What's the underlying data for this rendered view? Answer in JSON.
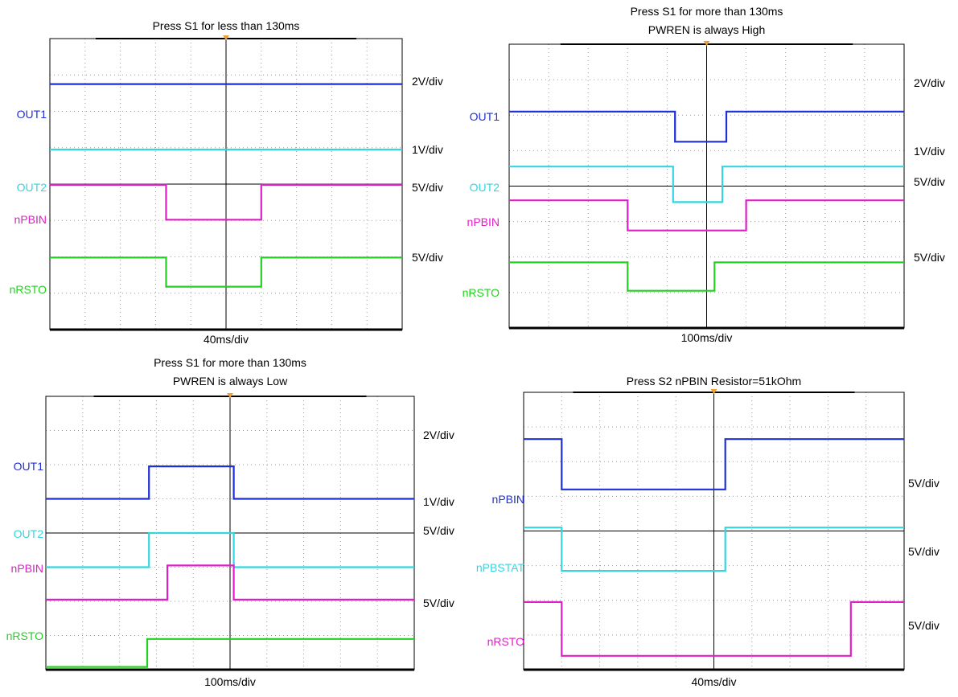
{
  "colors": {
    "blue": "#1f2fd6",
    "cyan": "#33d6e0",
    "magenta": "#e01ec8",
    "green": "#22d11f",
    "trigger": "#f0a030"
  },
  "chart_data": [
    {
      "type": "line",
      "chart": "oscilloscope",
      "title": [
        "Press S1 for less than 130ms"
      ],
      "timebase": "40ms/div",
      "x_range": [
        0,
        10
      ],
      "y_range": [
        0,
        8
      ],
      "traces": [
        {
          "name": "OUT1",
          "color": "blue",
          "scale": "2V/div",
          "points": [
            [
              0,
              6.75
            ],
            [
              10,
              6.75
            ]
          ]
        },
        {
          "name": "OUT2",
          "color": "cyan",
          "scale": "1V/div",
          "points": [
            [
              0,
              4.95
            ],
            [
              10,
              4.95
            ]
          ]
        },
        {
          "name": "nPBIN",
          "color": "magenta",
          "scale": "5V/div",
          "points": [
            [
              0,
              3.98
            ],
            [
              3.3,
              3.98
            ],
            [
              3.3,
              3.02
            ],
            [
              6.0,
              3.02
            ],
            [
              6.0,
              3.98
            ],
            [
              10,
              3.98
            ]
          ]
        },
        {
          "name": "nRSTO",
          "color": "green",
          "scale": "5V/div",
          "points": [
            [
              0,
              1.98
            ],
            [
              3.3,
              1.98
            ],
            [
              3.3,
              1.18
            ],
            [
              6.0,
              1.18
            ],
            [
              6.0,
              1.98
            ],
            [
              10,
              1.98
            ]
          ]
        }
      ]
    },
    {
      "type": "line",
      "chart": "oscilloscope",
      "title": [
        "Press S1 for more than 130ms",
        "PWREN is always High"
      ],
      "timebase": "100ms/div",
      "x_range": [
        0,
        10
      ],
      "y_range": [
        0,
        8
      ],
      "traces": [
        {
          "name": "OUT1",
          "color": "blue",
          "scale": "2V/div",
          "points": [
            [
              0,
              6.1
            ],
            [
              4.2,
              6.1
            ],
            [
              4.2,
              5.25
            ],
            [
              5.5,
              5.25
            ],
            [
              5.5,
              6.1
            ],
            [
              10,
              6.1
            ]
          ]
        },
        {
          "name": "OUT2",
          "color": "cyan",
          "scale": "1V/div",
          "points": [
            [
              0,
              4.55
            ],
            [
              4.15,
              4.55
            ],
            [
              4.15,
              3.55
            ],
            [
              5.4,
              3.55
            ],
            [
              5.4,
              4.55
            ],
            [
              10,
              4.55
            ]
          ]
        },
        {
          "name": "nPBIN",
          "color": "magenta",
          "scale": "5V/div",
          "points": [
            [
              0,
              3.6
            ],
            [
              3.0,
              3.6
            ],
            [
              3.0,
              2.75
            ],
            [
              6.0,
              2.75
            ],
            [
              6.0,
              3.6
            ],
            [
              10,
              3.6
            ]
          ]
        },
        {
          "name": "nRSTO",
          "color": "green",
          "scale": "5V/div",
          "points": [
            [
              0,
              1.85
            ],
            [
              3.0,
              1.85
            ],
            [
              3.0,
              1.05
            ],
            [
              5.2,
              1.05
            ],
            [
              5.2,
              1.85
            ],
            [
              10,
              1.85
            ]
          ]
        }
      ]
    },
    {
      "type": "line",
      "chart": "oscilloscope",
      "title": [
        "Press S1 for more than 130ms",
        "PWREN is always Low"
      ],
      "timebase": "100ms/div",
      "x_range": [
        0,
        10
      ],
      "y_range": [
        0,
        8
      ],
      "traces": [
        {
          "name": "OUT1",
          "color": "blue",
          "scale": "2V/div",
          "points": [
            [
              0,
              5.0
            ],
            [
              2.8,
              5.0
            ],
            [
              2.8,
              5.95
            ],
            [
              5.1,
              5.95
            ],
            [
              5.1,
              5.0
            ],
            [
              10,
              5.0
            ]
          ]
        },
        {
          "name": "OUT2",
          "color": "cyan",
          "scale": "1V/div",
          "points": [
            [
              0,
              3.0
            ],
            [
              2.8,
              3.0
            ],
            [
              2.8,
              4.0
            ],
            [
              5.1,
              4.0
            ],
            [
              5.1,
              3.0
            ],
            [
              10,
              3.0
            ]
          ]
        },
        {
          "name": "nPBIN",
          "color": "magenta",
          "scale": "5V/div",
          "points": [
            [
              0,
              2.05
            ],
            [
              3.3,
              2.05
            ],
            [
              3.3,
              3.05
            ],
            [
              5.1,
              3.05
            ],
            [
              5.1,
              2.05
            ],
            [
              10,
              2.05
            ]
          ]
        },
        {
          "name": "nRSTO",
          "color": "green",
          "scale": "5V/div",
          "points": [
            [
              0,
              0.08
            ],
            [
              2.75,
              0.08
            ],
            [
              2.75,
              0.9
            ],
            [
              10,
              0.9
            ]
          ]
        }
      ]
    },
    {
      "type": "line",
      "chart": "oscilloscope",
      "title": [
        "Press S2 nPBIN Resistor=51kOhm"
      ],
      "timebase": "40ms/div",
      "x_range": [
        0,
        10
      ],
      "y_range": [
        0,
        8
      ],
      "traces": [
        {
          "name": "nPBIN",
          "color": "blue",
          "scale": "5V/div",
          "points": [
            [
              0,
              6.65
            ],
            [
              1.0,
              6.65
            ],
            [
              1.0,
              5.2
            ],
            [
              5.3,
              5.2
            ],
            [
              5.3,
              6.65
            ],
            [
              10,
              6.65
            ]
          ]
        },
        {
          "name": "nPBSTAT",
          "color": "cyan",
          "scale": "5V/div",
          "points": [
            [
              0,
              4.1
            ],
            [
              1.0,
              4.1
            ],
            [
              1.0,
              2.85
            ],
            [
              5.3,
              2.85
            ],
            [
              5.3,
              4.1
            ],
            [
              10,
              4.1
            ]
          ]
        },
        {
          "name": "nRSTO",
          "color": "magenta",
          "scale": "5V/div",
          "points": [
            [
              0,
              1.95
            ],
            [
              1.0,
              1.95
            ],
            [
              1.0,
              0.4
            ],
            [
              8.6,
              0.4
            ],
            [
              8.6,
              1.95
            ],
            [
              10,
              1.95
            ]
          ]
        }
      ]
    }
  ]
}
